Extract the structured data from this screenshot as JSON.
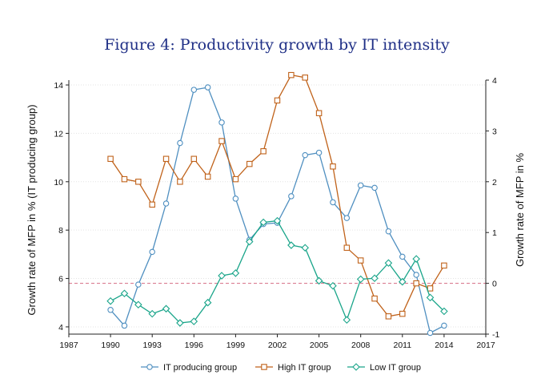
{
  "chart_data": {
    "type": "line",
    "title": "Figure 4: Productivity growth by IT intensity",
    "ylabel_left": "Growth rate of MFP in % (IT producing group)",
    "ylabel_right": "Growth rate of MFP in %",
    "xlim": [
      1987,
      2017
    ],
    "x_ticks": [
      1987,
      1990,
      1993,
      1996,
      1999,
      2002,
      2005,
      2008,
      2011,
      2014,
      2017
    ],
    "ylim_left": [
      3.7,
      14.2
    ],
    "y_ticks_left": [
      4,
      6,
      8,
      10,
      12,
      14
    ],
    "ylim_right": [
      -1.0,
      4.0
    ],
    "y_ticks_right": [
      -1,
      0,
      1,
      2,
      3,
      4
    ],
    "reference_line_right": 0,
    "grid": true,
    "legend_position": "bottom",
    "x": [
      1990,
      1991,
      1992,
      1993,
      1994,
      1995,
      1996,
      1997,
      1998,
      1999,
      2000,
      2001,
      2002,
      2003,
      2004,
      2005,
      2006,
      2007,
      2008,
      2009,
      2010,
      2011,
      2012,
      2013,
      2014
    ],
    "series": [
      {
        "name": "IT producing group",
        "axis": "left",
        "color": "#4f8fc0",
        "marker": "circle",
        "values": [
          4.7,
          4.05,
          5.75,
          7.1,
          9.1,
          11.6,
          13.8,
          13.9,
          12.45,
          9.3,
          7.6,
          8.25,
          8.3,
          9.4,
          11.1,
          11.2,
          9.15,
          8.5,
          9.85,
          9.75,
          7.95,
          6.9,
          6.15,
          3.75,
          4.05
        ]
      },
      {
        "name": "High IT group",
        "axis": "right",
        "color": "#c0621a",
        "marker": "square",
        "values": [
          2.45,
          2.05,
          2.0,
          1.55,
          2.45,
          2.0,
          2.45,
          2.1,
          2.8,
          2.05,
          2.35,
          2.6,
          3.6,
          4.1,
          4.05,
          3.35,
          2.3,
          0.7,
          0.45,
          -0.3,
          -0.65,
          -0.6,
          0.0,
          -0.1,
          0.35
        ]
      },
      {
        "name": "Low IT group",
        "axis": "right",
        "color": "#1aa58a",
        "marker": "diamond",
        "values": [
          -0.35,
          -0.2,
          -0.42,
          -0.6,
          -0.5,
          -0.78,
          -0.75,
          -0.38,
          0.15,
          0.2,
          0.82,
          1.2,
          1.23,
          0.75,
          0.7,
          0.05,
          -0.05,
          -0.72,
          0.08,
          0.1,
          0.4,
          0.03,
          0.48,
          -0.28,
          -0.55
        ]
      }
    ]
  }
}
